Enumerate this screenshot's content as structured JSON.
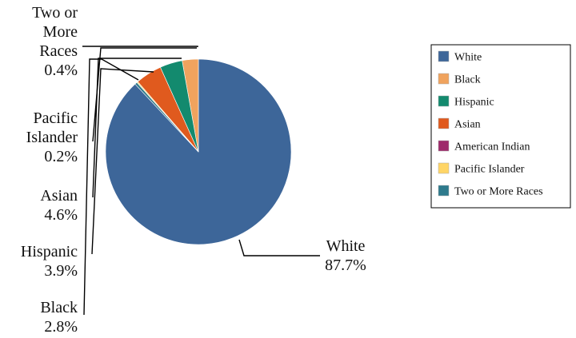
{
  "chart_data": {
    "type": "pie",
    "title": "",
    "categories": [
      "White",
      "Black",
      "Hispanic",
      "Asian",
      "American Indian",
      "Pacific Islander",
      "Two or More Races"
    ],
    "values": [
      87.7,
      2.8,
      3.9,
      4.6,
      0.0,
      0.2,
      0.4
    ],
    "colors": [
      "#3d6699",
      "#f0a35e",
      "#138a6e",
      "#e05a1e",
      "#9e2a6b",
      "#ffd566",
      "#2e7a8c"
    ],
    "slice_labels": [
      {
        "lines": [
          "White",
          "87.7%"
        ]
      },
      {
        "lines": [
          "Black",
          "2.8%"
        ]
      },
      {
        "lines": [
          "Hispanic",
          "3.9%"
        ]
      },
      {
        "lines": [
          "Asian",
          "4.6%"
        ]
      },
      null,
      {
        "lines": [
          "Pacific",
          "Islander",
          "0.2%"
        ]
      },
      {
        "lines": [
          "Two or",
          "More",
          "Races",
          "0.4%"
        ]
      }
    ],
    "legend": {
      "position": "right",
      "items": [
        "White",
        "Black",
        "Hispanic",
        "Asian",
        "American Indian",
        "Pacific Islander",
        "Two or More Races"
      ]
    }
  }
}
